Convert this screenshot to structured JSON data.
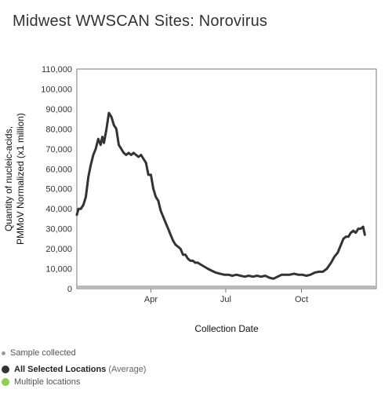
{
  "page": {
    "title": "Midwest WWSCAN Sites: Norovirus"
  },
  "legend": {
    "sample_collected": "Sample collected",
    "selected_label": "All Selected Locations",
    "selected_suffix": "(Average)",
    "multiple": "Multiple locations",
    "colors": {
      "sample": "#9a9a9a",
      "selected": "#333333",
      "multiple": "#8ecf4f"
    }
  },
  "chart_data": {
    "type": "line",
    "title": "Midwest WWSCAN Sites: Norovirus",
    "xlabel": "Collection Date",
    "ylabel_lines": [
      "Quantity of nucleic-acids,",
      "PMMoV Normalized (x1 million)"
    ],
    "ylim": [
      0,
      110000
    ],
    "yticks": [
      0,
      10000,
      20000,
      30000,
      40000,
      50000,
      60000,
      70000,
      80000,
      90000,
      100000,
      110000
    ],
    "ytick_labels": [
      "0",
      "10,000",
      "20,000",
      "30,000",
      "40,000",
      "50,000",
      "60,000",
      "70,000",
      "80,000",
      "90,000",
      "100,000",
      "110,000"
    ],
    "xlim": [
      "2022-01-01",
      "2022-12-31"
    ],
    "xticks": [
      {
        "date": "2022-04-01",
        "label": "Apr"
      },
      {
        "date": "2022-07-01",
        "label": "Jul"
      },
      {
        "date": "2022-10-01",
        "label": "Oct"
      }
    ],
    "series": [
      {
        "name": "All Selected Locations",
        "color": "#333333",
        "points": [
          [
            "2022-01-01",
            37000
          ],
          [
            "2022-01-03",
            40000
          ],
          [
            "2022-01-06",
            40000
          ],
          [
            "2022-01-09",
            42000
          ],
          [
            "2022-01-12",
            46000
          ],
          [
            "2022-01-15",
            56000
          ],
          [
            "2022-01-18",
            62000
          ],
          [
            "2022-01-21",
            67000
          ],
          [
            "2022-01-24",
            70000
          ],
          [
            "2022-01-27",
            75000
          ],
          [
            "2022-01-30",
            72000
          ],
          [
            "2022-02-01",
            76000
          ],
          [
            "2022-02-03",
            73000
          ],
          [
            "2022-02-06",
            80000
          ],
          [
            "2022-02-09",
            88000
          ],
          [
            "2022-02-12",
            86000
          ],
          [
            "2022-02-15",
            82000
          ],
          [
            "2022-02-18",
            80000
          ],
          [
            "2022-02-21",
            72000
          ],
          [
            "2022-02-24",
            70000
          ],
          [
            "2022-02-27",
            68000
          ],
          [
            "2022-03-02",
            67000
          ],
          [
            "2022-03-05",
            68000
          ],
          [
            "2022-03-08",
            67000
          ],
          [
            "2022-03-11",
            68000
          ],
          [
            "2022-03-14",
            67000
          ],
          [
            "2022-03-17",
            66000
          ],
          [
            "2022-03-20",
            67000
          ],
          [
            "2022-03-23",
            65000
          ],
          [
            "2022-03-26",
            63000
          ],
          [
            "2022-03-29",
            57000
          ],
          [
            "2022-04-01",
            57000
          ],
          [
            "2022-04-04",
            50000
          ],
          [
            "2022-04-07",
            46000
          ],
          [
            "2022-04-10",
            44000
          ],
          [
            "2022-04-13",
            39000
          ],
          [
            "2022-04-16",
            36000
          ],
          [
            "2022-04-19",
            33000
          ],
          [
            "2022-04-22",
            30000
          ],
          [
            "2022-04-25",
            27000
          ],
          [
            "2022-04-28",
            24000
          ],
          [
            "2022-05-01",
            22000
          ],
          [
            "2022-05-04",
            21000
          ],
          [
            "2022-05-07",
            20000
          ],
          [
            "2022-05-10",
            17000
          ],
          [
            "2022-05-13",
            17000
          ],
          [
            "2022-05-16",
            15000
          ],
          [
            "2022-05-19",
            14000
          ],
          [
            "2022-05-22",
            14000
          ],
          [
            "2022-05-25",
            13000
          ],
          [
            "2022-05-28",
            13000
          ],
          [
            "2022-06-01",
            12000
          ],
          [
            "2022-06-05",
            11000
          ],
          [
            "2022-06-09",
            10000
          ],
          [
            "2022-06-14",
            9000
          ],
          [
            "2022-06-19",
            8000
          ],
          [
            "2022-06-24",
            7500
          ],
          [
            "2022-06-29",
            7000
          ],
          [
            "2022-07-04",
            7000
          ],
          [
            "2022-07-09",
            6500
          ],
          [
            "2022-07-14",
            7000
          ],
          [
            "2022-07-19",
            6500
          ],
          [
            "2022-07-24",
            6000
          ],
          [
            "2022-07-29",
            6500
          ],
          [
            "2022-08-03",
            6000
          ],
          [
            "2022-08-08",
            6500
          ],
          [
            "2022-08-13",
            6000
          ],
          [
            "2022-08-18",
            6500
          ],
          [
            "2022-08-23",
            5500
          ],
          [
            "2022-08-28",
            5000
          ],
          [
            "2022-09-02",
            6000
          ],
          [
            "2022-09-07",
            7000
          ],
          [
            "2022-09-12",
            7000
          ],
          [
            "2022-09-17",
            7000
          ],
          [
            "2022-09-22",
            7500
          ],
          [
            "2022-09-27",
            7000
          ],
          [
            "2022-10-02",
            7000
          ],
          [
            "2022-10-07",
            6500
          ],
          [
            "2022-10-12",
            7000
          ],
          [
            "2022-10-17",
            8000
          ],
          [
            "2022-10-22",
            8500
          ],
          [
            "2022-10-27",
            8500
          ],
          [
            "2022-11-01",
            10000
          ],
          [
            "2022-11-06",
            13000
          ],
          [
            "2022-11-10",
            16000
          ],
          [
            "2022-11-14",
            18000
          ],
          [
            "2022-11-18",
            22000
          ],
          [
            "2022-11-21",
            25000
          ],
          [
            "2022-11-24",
            26000
          ],
          [
            "2022-11-27",
            26000
          ],
          [
            "2022-11-30",
            28000
          ],
          [
            "2022-12-03",
            29000
          ],
          [
            "2022-12-06",
            28000
          ],
          [
            "2022-12-09",
            30000
          ],
          [
            "2022-12-12",
            30000
          ],
          [
            "2022-12-15",
            31000
          ],
          [
            "2022-12-17",
            27000
          ]
        ]
      }
    ],
    "samples_marker": "Sample collected",
    "grid": false
  }
}
